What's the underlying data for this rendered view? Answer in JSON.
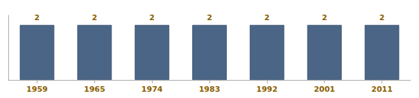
{
  "chart_data": {
    "type": "bar",
    "categories": [
      "1959",
      "1965",
      "1974",
      "1983",
      "1992",
      "2001",
      "2011"
    ],
    "values": [
      2,
      2,
      2,
      2,
      2,
      2,
      2
    ],
    "color": "#4A6585",
    "ylim": [
      0,
      2.35
    ],
    "yticks": [],
    "grid": false,
    "data_labels": true,
    "tick_labels": "x"
  }
}
